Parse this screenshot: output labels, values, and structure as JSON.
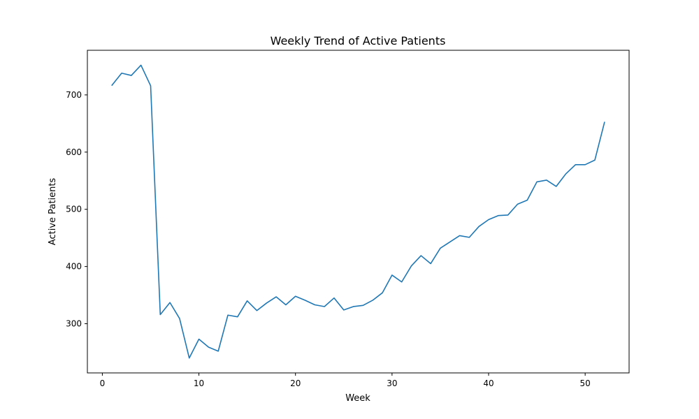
{
  "chart_data": {
    "type": "line",
    "title": "Weekly Trend of Active Patients",
    "xlabel": "Week",
    "ylabel": "Active Patients",
    "xlim": [
      -1.55,
      54.55
    ],
    "ylim": [
      214,
      778
    ],
    "xticks": [
      0,
      10,
      20,
      30,
      40,
      50
    ],
    "yticks": [
      300,
      400,
      500,
      600,
      700
    ],
    "grid": false,
    "colors": {
      "line": "#1f77b4"
    },
    "x": [
      1,
      2,
      3,
      4,
      5,
      6,
      7,
      8,
      9,
      10,
      11,
      12,
      13,
      14,
      15,
      16,
      17,
      18,
      19,
      20,
      21,
      22,
      23,
      24,
      25,
      26,
      27,
      28,
      29,
      30,
      31,
      32,
      33,
      34,
      35,
      36,
      37,
      38,
      39,
      40,
      41,
      42,
      43,
      44,
      45,
      46,
      47,
      48,
      49,
      50,
      51,
      52
    ],
    "series": [
      {
        "values": [
          717,
          738,
          734,
          752,
          716,
          316,
          337,
          309,
          240,
          273,
          259,
          252,
          315,
          312,
          340,
          323,
          336,
          347,
          333,
          348,
          341,
          333,
          330,
          345,
          324,
          330,
          332,
          341,
          354,
          385,
          373,
          401,
          419,
          405,
          432,
          443,
          454,
          451,
          470,
          482,
          489,
          490,
          509,
          516,
          548,
          551,
          540,
          562,
          578,
          578,
          586,
          652
        ]
      }
    ]
  }
}
